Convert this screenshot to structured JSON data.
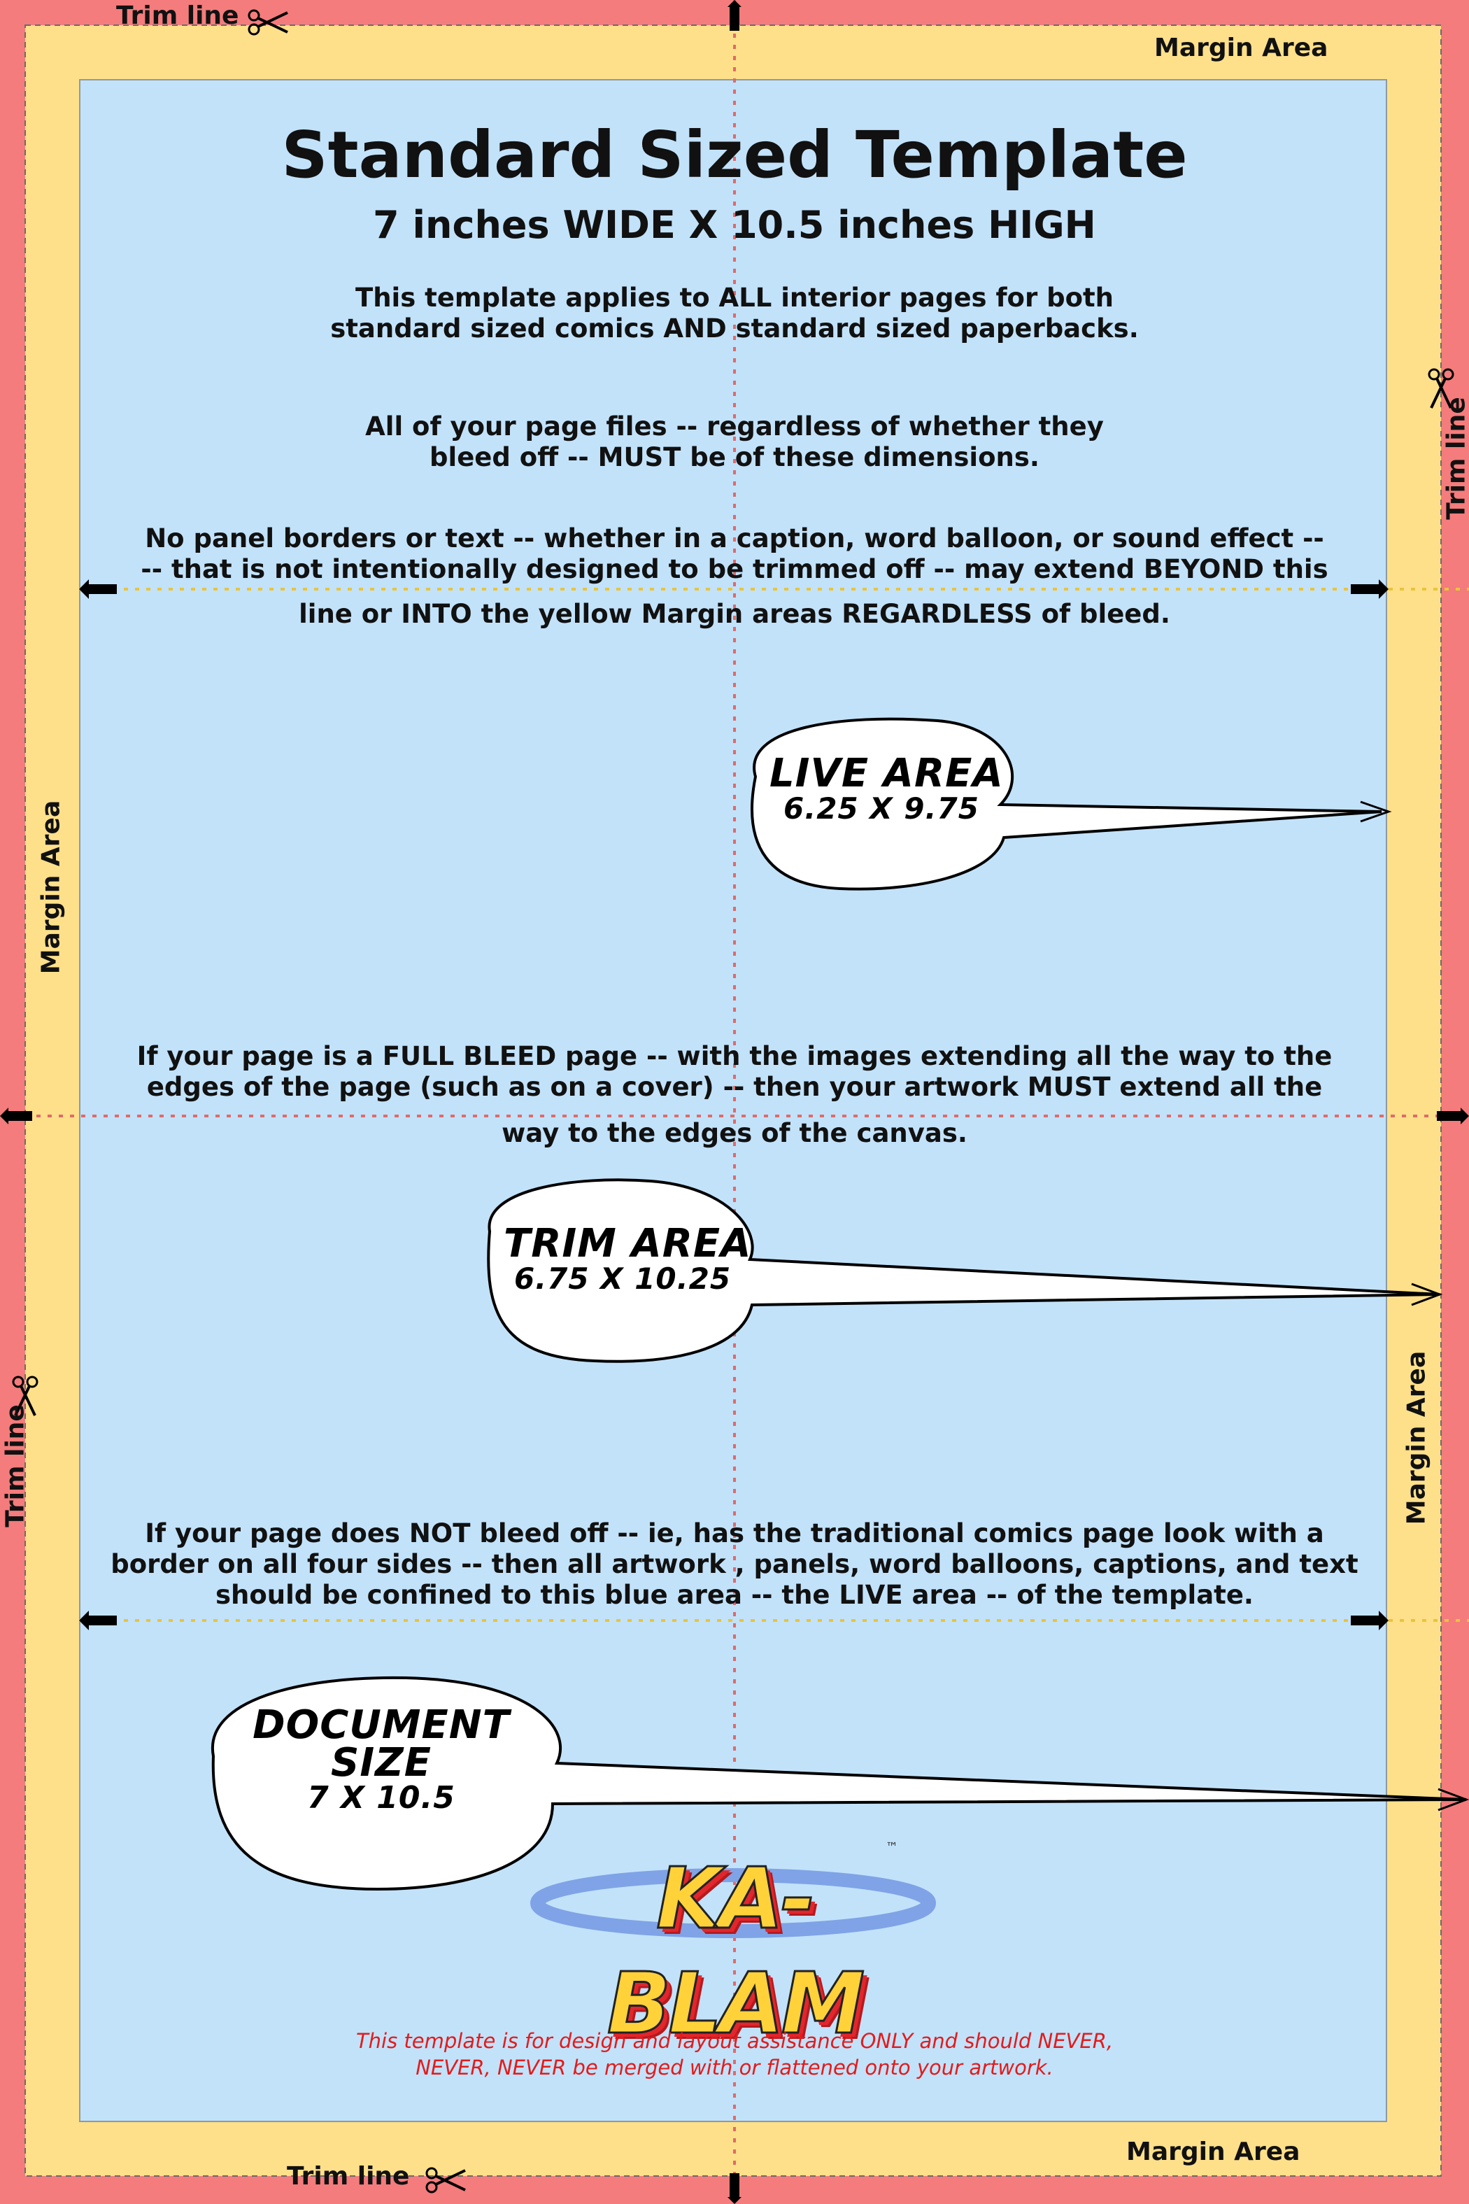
{
  "title": "Standard Sized Template",
  "subtitle": "7 inches WIDE X 10.5 inches HIGH",
  "paragraphs": {
    "applies": "This template applies to ALL interior pages for both\nstandard sized comics AND standard sized paperbacks.",
    "dimensions": "All of your page files -- regardless of whether they\nbleed off -- MUST be of these dimensions.",
    "no_panel": "No panel borders or text -- whether in a caption, word balloon, or sound effect --\n-- that is not intentionally designed to be trimmed off -- may extend BEYOND this",
    "no_panel_end": "line or INTO the yellow Margin areas REGARDLESS of bleed.",
    "full_bleed": "If your page is a FULL BLEED page -- with the images extending all the way to the\nedges of the page (such as on a cover) -- then your artwork MUST extend all the",
    "full_bleed_end": "way to the edges of the canvas.",
    "no_bleed": "If your page does NOT bleed off -- ie, has the traditional comics page look with a\nborder on all four sides -- then all artwork , panels, word balloons, captions, and text\nshould be confined to this blue area -- the LIVE area -- of the template."
  },
  "balloons": {
    "live": {
      "line1": "LIVE AREA",
      "line2": "6.25 X 9.75"
    },
    "trim": {
      "line1": "TRIM AREA",
      "line2": "6.75 X 10.25"
    },
    "document": {
      "line1": "DOCUMENT",
      "line2": "SIZE",
      "line3": "7 X 10.5"
    }
  },
  "labels": {
    "trim_line": "Trim line",
    "margin_area": "Margin Area"
  },
  "logo": {
    "text": "KA-BLAM",
    "tm": "™"
  },
  "disclaimer": "This template is for design and layout assistance ONLY and should NEVER,\nNEVER, NEVER be merged with or flattened onto your artwork.",
  "colors": {
    "bleed": "#f47c7c",
    "margin": "#ffe08a",
    "live": "#c2e2fa",
    "guide_red": "#e06a6a",
    "guide_yellow": "#e9c43a",
    "disclaimer": "#e31b1b"
  }
}
